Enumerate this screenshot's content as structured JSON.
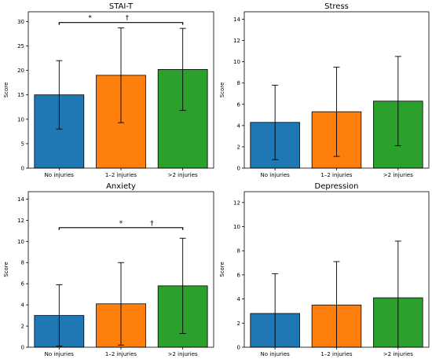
{
  "chart_data": [
    {
      "type": "bar",
      "title": "STAI-T",
      "ylabel": "Score",
      "categories": [
        "No injuries",
        "1–2 injuries",
        ">2 injuries"
      ],
      "values": [
        15.0,
        19.0,
        20.2
      ],
      "error": [
        7.0,
        9.7,
        8.4
      ],
      "ylim": [
        0,
        32
      ],
      "yticks": [
        0,
        5,
        10,
        15,
        20,
        25,
        30
      ],
      "significance": {
        "y": 29.8,
        "from": 0,
        "to": 2,
        "marks": [
          {
            "text": "*",
            "at": 0.5
          },
          {
            "text": "†",
            "at": 1.1
          }
        ]
      }
    },
    {
      "type": "bar",
      "title": "Stress",
      "ylabel": "Score",
      "categories": [
        "No injuries",
        "1–2 injuries",
        ">2 injuries"
      ],
      "values": [
        4.3,
        5.3,
        6.3
      ],
      "error": [
        3.5,
        4.2,
        4.2
      ],
      "ylim": [
        0,
        14.7
      ],
      "yticks": [
        0,
        2,
        4,
        6,
        8,
        10,
        12,
        14
      ]
    },
    {
      "type": "bar",
      "title": "Anxiety",
      "ylabel": "Score",
      "categories": [
        "No injuries",
        "1–2 injuries",
        ">2 injuries"
      ],
      "values": [
        3.0,
        4.1,
        5.8
      ],
      "error": [
        2.9,
        3.9,
        4.5
      ],
      "ylim": [
        0,
        14.7
      ],
      "yticks": [
        0,
        2,
        4,
        6,
        8,
        10,
        12,
        14
      ],
      "significance": {
        "y": 11.3,
        "from": 0,
        "to": 2,
        "marks": [
          {
            "text": "*",
            "at": 1.0
          },
          {
            "text": "†",
            "at": 1.5
          }
        ]
      }
    },
    {
      "type": "bar",
      "title": "Depression",
      "ylabel": "Score",
      "categories": [
        "No injuries",
        "1–2 injuries",
        ">2 injuries"
      ],
      "values": [
        2.8,
        3.5,
        4.1
      ],
      "error": [
        3.3,
        3.6,
        4.7
      ],
      "ylim": [
        0,
        12.9
      ],
      "yticks": [
        0,
        2,
        4,
        6,
        8,
        10,
        12
      ]
    }
  ],
  "colors": [
    "#1f77b4",
    "#ff7f0e",
    "#2ca02c"
  ]
}
